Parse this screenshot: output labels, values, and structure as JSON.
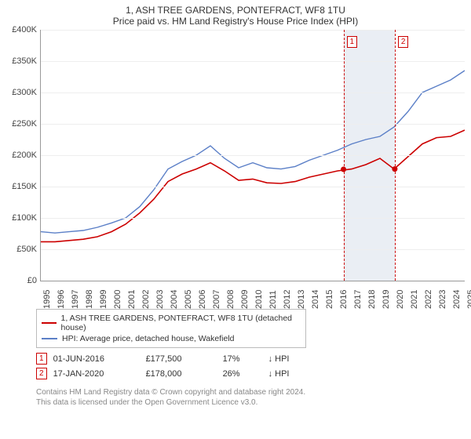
{
  "title": "1, ASH TREE GARDENS, PONTEFRACT, WF8 1TU",
  "subtitle": "Price paid vs. HM Land Registry's House Price Index (HPI)",
  "chart": {
    "type": "line",
    "background_color": "#ffffff",
    "grid_color": "#eeeeee",
    "axis_color": "#999999",
    "ylim": [
      0,
      400000
    ],
    "ytick_step": 50000,
    "yticks": [
      "£0",
      "£50K",
      "£100K",
      "£150K",
      "£200K",
      "£250K",
      "£300K",
      "£350K",
      "£400K"
    ],
    "xlim": [
      1995,
      2025
    ],
    "xticks": [
      1995,
      1996,
      1997,
      1998,
      1999,
      2000,
      2001,
      2002,
      2003,
      2004,
      2005,
      2006,
      2007,
      2008,
      2009,
      2010,
      2011,
      2012,
      2013,
      2014,
      2015,
      2016,
      2017,
      2018,
      2019,
      2020,
      2021,
      2022,
      2023,
      2024,
      2025
    ],
    "series": [
      {
        "name": "1, ASH TREE GARDENS, PONTEFRACT, WF8 1TU (detached house)",
        "color": "#cc0000",
        "width": 1.6,
        "data": [
          [
            1995,
            62000
          ],
          [
            1996,
            62000
          ],
          [
            1997,
            64000
          ],
          [
            1998,
            66000
          ],
          [
            1999,
            70000
          ],
          [
            2000,
            78000
          ],
          [
            2001,
            90000
          ],
          [
            2002,
            108000
          ],
          [
            2003,
            130000
          ],
          [
            2004,
            158000
          ],
          [
            2005,
            170000
          ],
          [
            2006,
            178000
          ],
          [
            2007,
            188000
          ],
          [
            2008,
            175000
          ],
          [
            2009,
            160000
          ],
          [
            2010,
            162000
          ],
          [
            2011,
            156000
          ],
          [
            2012,
            155000
          ],
          [
            2013,
            158000
          ],
          [
            2014,
            165000
          ],
          [
            2015,
            170000
          ],
          [
            2016,
            175000
          ],
          [
            2017,
            178000
          ],
          [
            2018,
            185000
          ],
          [
            2019,
            195000
          ],
          [
            2020,
            178000
          ],
          [
            2021,
            198000
          ],
          [
            2022,
            218000
          ],
          [
            2023,
            228000
          ],
          [
            2024,
            230000
          ],
          [
            2025,
            240000
          ]
        ]
      },
      {
        "name": "HPI: Average price, detached house, Wakefield",
        "color": "#5b7fc7",
        "width": 1.4,
        "data": [
          [
            1995,
            78000
          ],
          [
            1996,
            76000
          ],
          [
            1997,
            78000
          ],
          [
            1998,
            80000
          ],
          [
            1999,
            85000
          ],
          [
            2000,
            92000
          ],
          [
            2001,
            100000
          ],
          [
            2002,
            118000
          ],
          [
            2003,
            145000
          ],
          [
            2004,
            178000
          ],
          [
            2005,
            190000
          ],
          [
            2006,
            200000
          ],
          [
            2007,
            215000
          ],
          [
            2008,
            195000
          ],
          [
            2009,
            180000
          ],
          [
            2010,
            188000
          ],
          [
            2011,
            180000
          ],
          [
            2012,
            178000
          ],
          [
            2013,
            182000
          ],
          [
            2014,
            192000
          ],
          [
            2015,
            200000
          ],
          [
            2016,
            208000
          ],
          [
            2017,
            218000
          ],
          [
            2018,
            225000
          ],
          [
            2019,
            230000
          ],
          [
            2020,
            245000
          ],
          [
            2021,
            270000
          ],
          [
            2022,
            300000
          ],
          [
            2023,
            310000
          ],
          [
            2024,
            320000
          ],
          [
            2025,
            335000
          ]
        ]
      }
    ],
    "markers": [
      {
        "x": 2016.42,
        "y": 177500,
        "color": "#cc0000"
      },
      {
        "x": 2020.05,
        "y": 178000,
        "color": "#cc0000"
      }
    ],
    "callouts": [
      {
        "label": "1",
        "x": 2016.42
      },
      {
        "label": "2",
        "x": 2020.05
      }
    ],
    "shaded_range": {
      "x0": 2016.42,
      "x1": 2020.05,
      "color": "rgba(180,195,215,0.28)"
    }
  },
  "legend": {
    "items": [
      {
        "label": "1, ASH TREE GARDENS, PONTEFRACT, WF8 1TU (detached house)",
        "color": "#cc0000"
      },
      {
        "label": "HPI: Average price, detached house, Wakefield",
        "color": "#5b7fc7"
      }
    ]
  },
  "transactions": [
    {
      "id": "1",
      "date": "01-JUN-2016",
      "price": "£177,500",
      "pct": "17%",
      "arrow": "↓",
      "vs": "HPI"
    },
    {
      "id": "2",
      "date": "17-JAN-2020",
      "price": "£178,000",
      "pct": "26%",
      "arrow": "↓",
      "vs": "HPI"
    }
  ],
  "footer": {
    "line1": "Contains HM Land Registry data © Crown copyright and database right 2024.",
    "line2": "This data is licensed under the Open Government Licence v3.0."
  }
}
